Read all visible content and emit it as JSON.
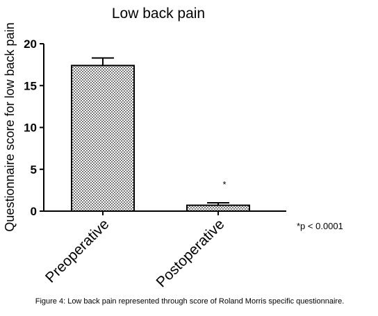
{
  "chart_data": {
    "type": "bar",
    "title": "Low back pain",
    "xlabel": "",
    "ylabel": "Questionnaire score for low back pain",
    "categories": [
      "Preoperative",
      "Postoperative"
    ],
    "values": [
      17.4,
      0.7
    ],
    "error": [
      0.9,
      0.3
    ],
    "ylim": [
      0,
      20
    ],
    "yticks": [
      "0",
      "5",
      "10",
      "15",
      "20"
    ],
    "grid": false,
    "bar_fill": "dotted gray",
    "significance_marker": "*",
    "footnote": "*p < 0.0001"
  },
  "caption": "Figure 4: Low back pain represented through score of Roland Morris specific questionnaire."
}
